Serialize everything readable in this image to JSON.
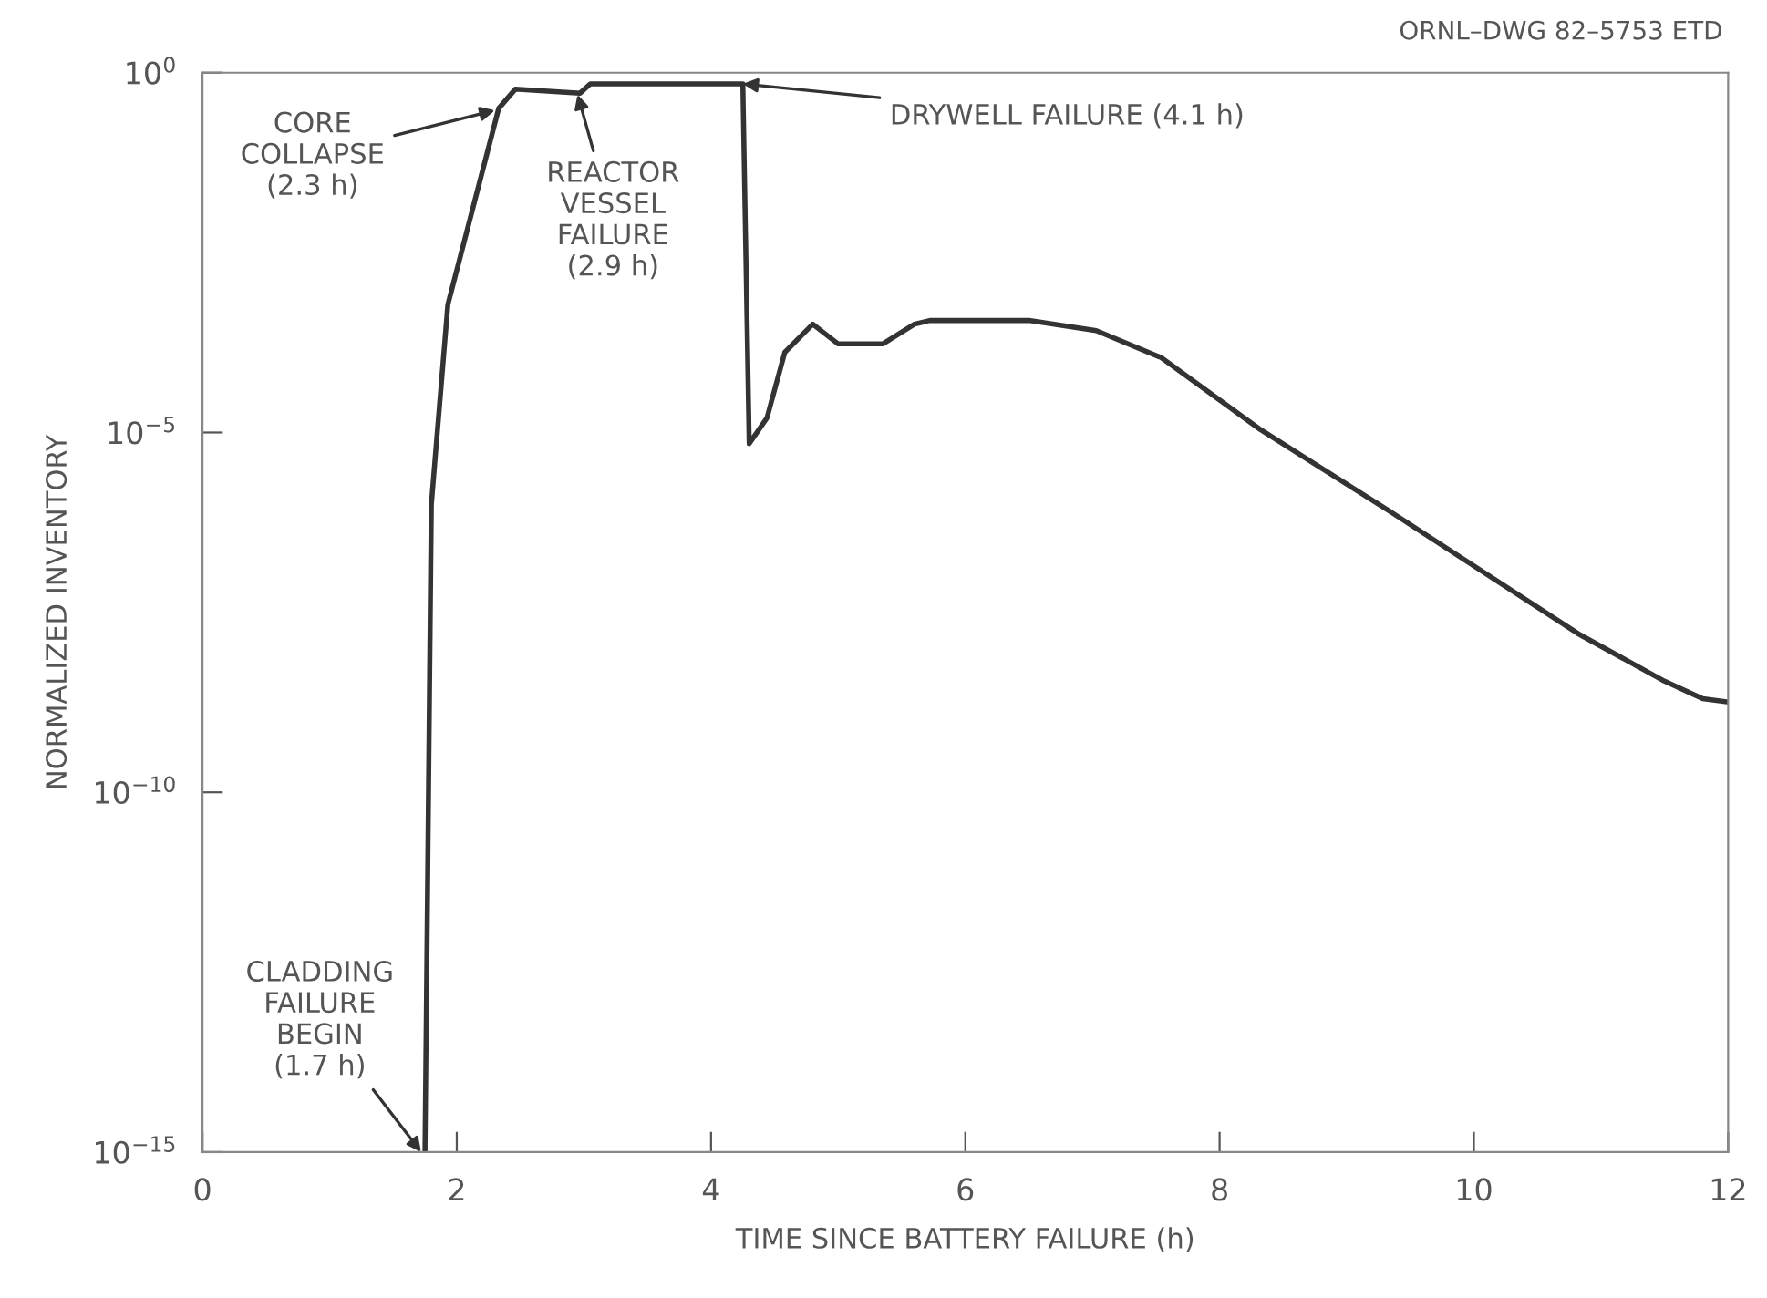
{
  "chart_data": {
    "type": "line",
    "xlabel": "TIME SINCE BATTERY FAILURE (h)",
    "ylabel": "NORMALIZED INVENTORY",
    "log": "y",
    "xlim": [
      0,
      12
    ],
    "xticks": [
      0,
      2,
      4,
      6,
      8,
      10,
      12
    ],
    "ylim": [
      1e-15,
      1
    ],
    "yticks": [
      {
        "value": 1,
        "label": "10$^{0}$"
      },
      {
        "value": 1e-05,
        "label": "10$^{−5}$"
      },
      {
        "value": 1e-10,
        "label": "10$^{−10}$"
      },
      {
        "value": 1e-15,
        "label": "10$^{−15}$"
      }
    ],
    "grid": false,
    "marker": "none",
    "line_style": "solid",
    "series": [
      {
        "color": "#333333",
        "x": [
          1.75,
          1.8,
          1.93,
          2.33,
          2.46,
          2.97,
          3.05,
          4.25,
          4.3,
          4.44,
          4.58,
          4.8,
          5.0,
          5.35,
          5.6,
          5.72,
          6.5,
          7.03,
          7.54,
          8.32,
          9.37,
          10.82,
          11.5,
          11.8,
          12
        ],
        "values": [
          1e-15,
          1e-06,
          0.0006,
          0.32,
          0.59,
          0.52,
          0.7,
          0.7,
          7e-06,
          1.6e-05,
          0.00013,
          0.00032,
          0.00017,
          0.00017,
          0.00032,
          0.00036,
          0.00036,
          0.00026,
          0.00011,
          1.1e-05,
          7.4e-07,
          1.6e-08,
          3.5e-09,
          2e-09,
          1.8e-09
        ]
      }
    ],
    "annotations": [
      {
        "text": "CORE\nCOLLAPSE\n(2.3 h)",
        "x": 2.3,
        "y": 0.3
      },
      {
        "text": "REACTOR\nVESSEL\nFAILURE\n(2.9 h)",
        "x": 2.95,
        "y": 0.5
      },
      {
        "text": "DRYWELL FAILURE (4.1 h)",
        "x": 4.25,
        "y": 0.7
      },
      {
        "text": "CLADDING\nFAILURE\nBEGIN\n(1.7 h)",
        "x": 1.72,
        "y": 1e-15
      },
      "ORNL–DWG 82–5753 ETD"
    ]
  }
}
